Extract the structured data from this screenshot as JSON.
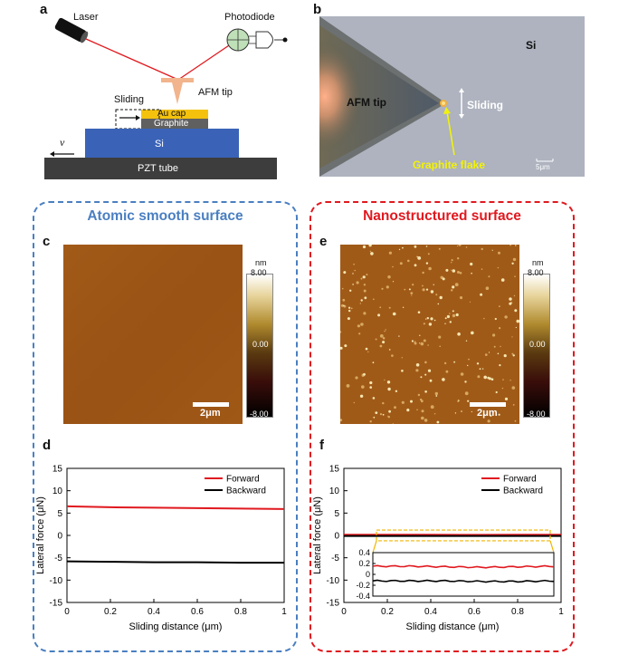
{
  "panels": {
    "a": "a",
    "b": "b",
    "c": "c",
    "d": "d",
    "e": "e",
    "f": "f"
  },
  "schematic": {
    "laser": "Laser",
    "photodiode": "Photodiode",
    "afm_tip": "AFM tip",
    "sliding": "Sliding",
    "au_cap": "Au cap",
    "graphite": "Graphite",
    "si": "Si",
    "pzt": "PZT tube",
    "velocity": "v"
  },
  "micrograph": {
    "si": "Si",
    "afm_tip": "AFM tip",
    "sliding": "Sliding",
    "graphite_flake": "Graphite flake",
    "scale": "5μm"
  },
  "left_box": {
    "title": "Atomic smooth surface",
    "color": "#4a7fc1",
    "scale": "2μm",
    "cbar_unit": "nm",
    "cbar_max": "8.00",
    "cbar_mid": "0.00",
    "cbar_min": "-8.00"
  },
  "right_box": {
    "title": "Nanostructured surface",
    "color": "#e0191f",
    "scale": "2μm",
    "cbar_unit": "nm",
    "cbar_max": "8.00",
    "cbar_mid": "0.00",
    "cbar_min": "-8.00"
  },
  "chart_data": [
    {
      "type": "line",
      "panel": "d",
      "xlabel": "Sliding distance (μm)",
      "ylabel": "Lateral force (μN)",
      "xlim": [
        0,
        1
      ],
      "ylim": [
        -15,
        15
      ],
      "xticks": [
        "0",
        "0.2",
        "0.4",
        "0.6",
        "0.8",
        "1"
      ],
      "yticks": [
        "-15",
        "-10",
        "-5",
        "0",
        "5",
        "10",
        "15"
      ],
      "legend_position": "top-right",
      "series": [
        {
          "name": "Forward",
          "color": "#e0191f",
          "x": [
            0,
            0.2,
            0.4,
            0.6,
            0.8,
            1.0
          ],
          "y": [
            6.5,
            6.3,
            6.2,
            6.1,
            6.0,
            5.9
          ]
        },
        {
          "name": "Backward",
          "color": "#000000",
          "x": [
            0,
            0.2,
            0.4,
            0.6,
            0.8,
            1.0
          ],
          "y": [
            -5.8,
            -5.9,
            -6.0,
            -6.0,
            -6.1,
            -6.1
          ]
        }
      ]
    },
    {
      "type": "line",
      "panel": "f",
      "xlabel": "Sliding distance (μm)",
      "ylabel": "Lateral force (μN)",
      "xlim": [
        0,
        1
      ],
      "ylim": [
        -15,
        15
      ],
      "xticks": [
        "0",
        "0.2",
        "0.4",
        "0.6",
        "0.8",
        "1"
      ],
      "yticks": [
        "-15",
        "-10",
        "-5",
        "0",
        "5",
        "10",
        "15"
      ],
      "legend_position": "top-right",
      "series": [
        {
          "name": "Forward",
          "color": "#e0191f",
          "x": [
            0,
            0.2,
            0.4,
            0.6,
            0.8,
            1.0
          ],
          "y": [
            0.15,
            0.15,
            0.14,
            0.13,
            0.14,
            0.15
          ]
        },
        {
          "name": "Backward",
          "color": "#000000",
          "x": [
            0,
            0.2,
            0.4,
            0.6,
            0.8,
            1.0
          ],
          "y": [
            -0.12,
            -0.12,
            -0.12,
            -0.13,
            -0.13,
            -0.12
          ]
        }
      ],
      "inset": {
        "ylim": [
          -0.4,
          0.4
        ],
        "yticks": [
          "0.4",
          "0.2",
          "0",
          "-0.2",
          "-0.4"
        ],
        "xlim": [
          0.15,
          0.95
        ]
      }
    }
  ]
}
